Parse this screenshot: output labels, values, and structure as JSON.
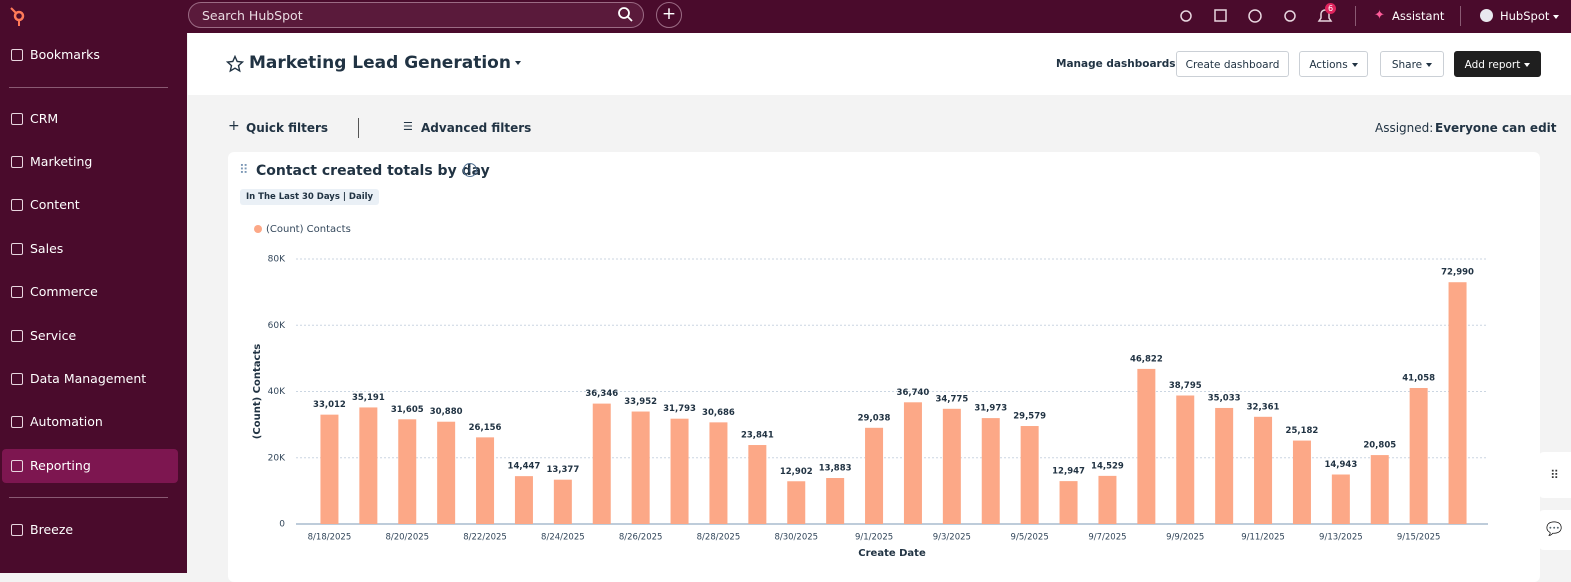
{
  "topbar": {
    "search": "Search HubSpot",
    "notification_count": "6",
    "assistant": "Assistant",
    "account": "HubSpot"
  },
  "sidebar": {
    "items": [
      "Bookmarks",
      "CRM",
      "Marketing",
      "Content",
      "Sales",
      "Commerce",
      "Service",
      "Data Management",
      "Automation",
      "Reporting",
      "Breeze"
    ],
    "active": "Reporting"
  },
  "header": {
    "title": "Marketing Lead Generation",
    "manage": "Manage dashboards",
    "buttons": [
      "Create dashboard",
      "Actions",
      "Share",
      "Add report"
    ]
  },
  "filters": {
    "quick": "Quick filters",
    "advanced": "Advanced filters",
    "assigned_label": "Assigned:",
    "assigned_value": "Everyone can edit"
  },
  "chart_data": {
    "type": "bar",
    "title": "Contact created totals by day",
    "subtitle": "In The Last 30 Days | Daily",
    "x_label": "Create Date",
    "y_label": "(Count) Contacts",
    "categories": [
      "8/18/2025",
      null,
      "8/20/2025",
      null,
      "8/22/2025",
      null,
      "8/24/2025",
      null,
      "8/26/2025",
      null,
      "8/28/2025",
      null,
      "8/30/2025",
      null,
      "9/1/2025",
      null,
      "9/3/2025",
      null,
      "9/5/2025",
      null,
      "9/7/2025",
      null,
      "9/9/2025",
      null,
      "9/11/2025",
      null,
      "9/13/2025",
      null,
      "9/15/2025",
      null
    ],
    "series": [
      {
        "name": "(Count) Contacts",
        "color": "#fca887",
        "values": [
          33012,
          35191,
          31605,
          30880,
          26156,
          14447,
          13377,
          36346,
          33952,
          31793,
          30686,
          23841,
          12902,
          13883,
          29038,
          36740,
          34775,
          31973,
          29579,
          12947,
          14529,
          46822,
          38795,
          35033,
          32361,
          25182,
          14943,
          20805,
          41058,
          72990
        ],
        "value_labels": [
          "33,012",
          "35,191",
          "31,605",
          "30,880",
          "26,156",
          "14,447",
          "13,377",
          "36,346",
          "33,952",
          "31,793",
          "30,686",
          "23,841",
          "12,902",
          "13,883",
          "29,038",
          "36,740",
          "34,775",
          "31,973",
          "29,579",
          "12,947",
          "14,529",
          "46,822",
          "38,795",
          "35,033",
          "32,361",
          "25,182",
          "14,943",
          "20,805",
          "41,058",
          "72,990"
        ]
      }
    ],
    "ylim": [
      0,
      80000
    ],
    "yticks": [
      0,
      {
        "value": 20000,
        "label": "20K"
      },
      {
        "value": 40000,
        "label": "40K"
      },
      {
        "value": 60000,
        "label": "60K"
      },
      {
        "value": 80000,
        "label": "80K"
      }
    ],
    "grid": true
  }
}
